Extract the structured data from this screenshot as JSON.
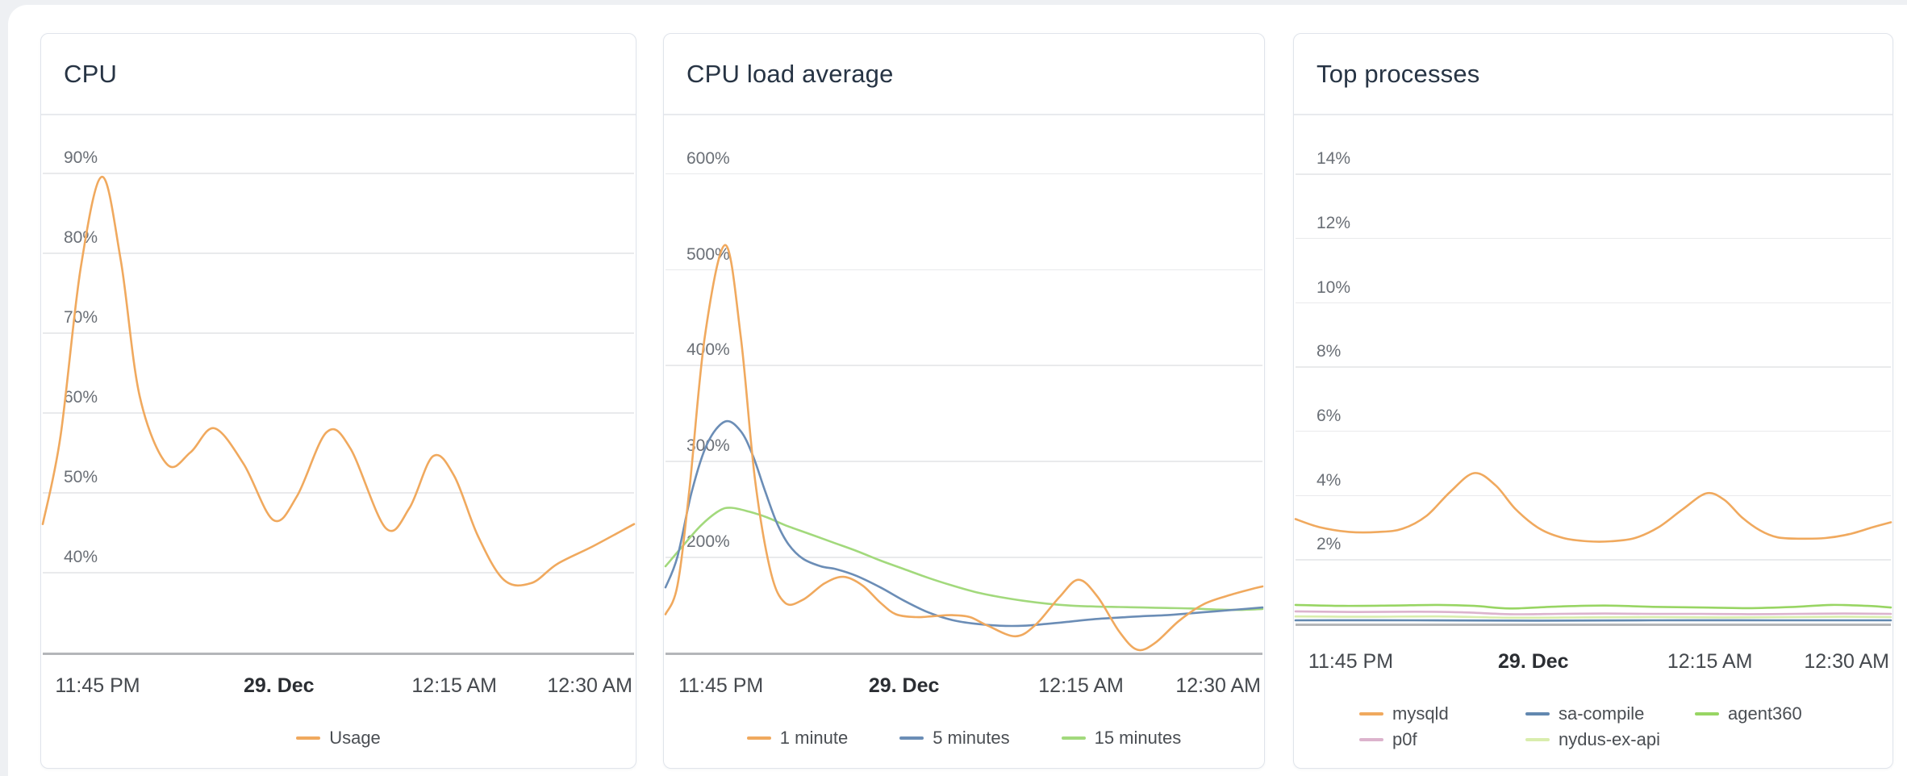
{
  "page": {
    "background": "#eef0f3",
    "surface": "#ffffff"
  },
  "styles": {
    "card_border": "#e0e4eb",
    "card_bg": "#ffffff",
    "divider": "#e8eaee",
    "gridline": "#e9eaec",
    "axis_line": "#b4b6b9",
    "title_color": "#273444",
    "ytick_color": "#6a6f76",
    "xtick_color": "#45494e",
    "xtick_bold_color": "#2b2e33",
    "legend_text_color": "#4a4e53",
    "orange": "#f0a95e",
    "blue": "#6b8db6",
    "green": "#a2d97c",
    "bright_green": "#98d563",
    "pink": "#dcb3cd",
    "pale_green": "#d9edad",
    "steel_blue": "#6288b0"
  },
  "x_ticks": [
    {
      "label": "11:45 PM",
      "pos": 0.095,
      "bold": false
    },
    {
      "label": "29. Dec",
      "pos": 0.4,
      "bold": true
    },
    {
      "label": "12:15 AM",
      "pos": 0.695,
      "bold": false
    },
    {
      "label": "12:30 AM",
      "pos": 1.0,
      "bold": false,
      "align": "right"
    }
  ],
  "chart_data": [
    {
      "type": "line",
      "title": "CPU",
      "xlabel": "",
      "ylabel": "",
      "x_time_span": "11:40 PM - 12:30 AM",
      "x_range_minutes": [
        0,
        50
      ],
      "ylim": [
        29.9,
        97.4
      ],
      "grid": true,
      "legend_position": "bottom",
      "yticks": [
        {
          "value": 90,
          "label": "90%"
        },
        {
          "value": 80,
          "label": "80%"
        },
        {
          "value": 70,
          "label": "70%"
        },
        {
          "value": 60,
          "label": "60%"
        },
        {
          "value": 50,
          "label": "50%"
        },
        {
          "value": 40,
          "label": "40%"
        }
      ],
      "series": [
        {
          "name": "Usage",
          "color": "#f0a95e",
          "points": [
            [
              0,
              46
            ],
            [
              1.5,
              57
            ],
            [
              3.2,
              78
            ],
            [
              5,
              89.5
            ],
            [
              6.6,
              79
            ],
            [
              8.2,
              62
            ],
            [
              10.5,
              53.5
            ],
            [
              12.5,
              55
            ],
            [
              14.5,
              58
            ],
            [
              17,
              53.5
            ],
            [
              19.5,
              46.5
            ],
            [
              21.5,
              49.5
            ],
            [
              24,
              57.5
            ],
            [
              26,
              55.5
            ],
            [
              29,
              45.5
            ],
            [
              31,
              48
            ],
            [
              33,
              54.5
            ],
            [
              34.8,
              52
            ],
            [
              36.8,
              44.5
            ],
            [
              39,
              39
            ],
            [
              41.3,
              38.6
            ],
            [
              43.5,
              41
            ],
            [
              46.5,
              43.2
            ],
            [
              50,
              46
            ]
          ]
        }
      ]
    },
    {
      "type": "line",
      "title": "CPU load average",
      "xlabel": "",
      "ylabel": "",
      "x_time_span": "11:40 PM - 12:30 AM",
      "x_range_minutes": [
        0,
        50
      ],
      "ylim": [
        100,
        662
      ],
      "grid": true,
      "legend_position": "bottom",
      "yticks": [
        {
          "value": 600,
          "label": "600%"
        },
        {
          "value": 500,
          "label": "500%"
        },
        {
          "value": 400,
          "label": "400%"
        },
        {
          "value": 300,
          "label": "300%"
        },
        {
          "value": 200,
          "label": "200%"
        }
      ],
      "series": [
        {
          "name": "1 minute",
          "color": "#f0a95e",
          "points": [
            [
              0,
              140
            ],
            [
              1,
              170
            ],
            [
              2,
              270
            ],
            [
              3.3,
              430
            ],
            [
              5,
              525
            ],
            [
              6.3,
              430
            ],
            [
              7.5,
              280
            ],
            [
              8.8,
              185
            ],
            [
              10,
              152
            ],
            [
              11.5,
              155
            ],
            [
              13.3,
              172
            ],
            [
              14.9,
              179
            ],
            [
              16.5,
              170
            ],
            [
              18,
              152
            ],
            [
              19.3,
              140
            ],
            [
              21,
              137
            ],
            [
              22.5,
              138
            ],
            [
              24,
              139
            ],
            [
              25.5,
              137
            ],
            [
              27,
              128
            ],
            [
              29.3,
              117
            ],
            [
              31,
              129
            ],
            [
              33,
              158
            ],
            [
              34.6,
              176
            ],
            [
              36.2,
              158
            ],
            [
              38,
              122
            ],
            [
              39.5,
              103
            ],
            [
              41,
              110
            ],
            [
              43,
              133
            ],
            [
              45,
              150
            ],
            [
              47,
              159
            ],
            [
              49,
              166
            ],
            [
              50,
              169
            ]
          ]
        },
        {
          "name": "5 minutes",
          "color": "#6b8db6",
          "points": [
            [
              0,
              168
            ],
            [
              1,
              200
            ],
            [
              2.2,
              268
            ],
            [
              3.5,
              318
            ],
            [
              5,
              341
            ],
            [
              6.3,
              331
            ],
            [
              7.3,
              306
            ],
            [
              8.3,
              270
            ],
            [
              9.3,
              236
            ],
            [
              10.3,
              213
            ],
            [
              11.5,
              198
            ],
            [
              13,
              190
            ],
            [
              14.3,
              187
            ],
            [
              16,
              180
            ],
            [
              18,
              168
            ],
            [
              20,
              154
            ],
            [
              22,
              142
            ],
            [
              24,
              134
            ],
            [
              26,
              130
            ],
            [
              28,
              128
            ],
            [
              30,
              128
            ],
            [
              32,
              130
            ],
            [
              34,
              132.5
            ],
            [
              36,
              135
            ],
            [
              38,
              136.5
            ],
            [
              40,
              138
            ],
            [
              42,
              139
            ],
            [
              44,
              141
            ],
            [
              46,
              143
            ],
            [
              48,
              145
            ],
            [
              50,
              147
            ]
          ]
        },
        {
          "name": "15 minutes",
          "color": "#a2d97c",
          "points": [
            [
              0,
              190
            ],
            [
              1.5,
              212
            ],
            [
              3,
              233
            ],
            [
              4.5,
              248
            ],
            [
              5.5,
              251
            ],
            [
              7,
              247
            ],
            [
              8.5,
              241
            ],
            [
              10,
              233
            ],
            [
              12,
              224
            ],
            [
              14,
              215
            ],
            [
              16,
              206
            ],
            [
              18,
              196
            ],
            [
              20,
              187
            ],
            [
              22,
              178
            ],
            [
              24,
              170
            ],
            [
              26,
              163
            ],
            [
              28,
              158
            ],
            [
              30,
              154
            ],
            [
              32,
              151
            ],
            [
              34,
              149
            ],
            [
              36,
              148
            ],
            [
              38,
              147.5
            ],
            [
              40,
              147
            ],
            [
              42,
              146.5
            ],
            [
              44,
              146
            ],
            [
              46,
              145
            ],
            [
              48,
              144.5
            ],
            [
              50,
              145.5
            ]
          ]
        }
      ]
    },
    {
      "type": "line",
      "title": "Top processes",
      "xlabel": "",
      "ylabel": "",
      "x_time_span": "11:40 PM - 12:30 AM",
      "x_range_minutes": [
        0,
        50
      ],
      "ylim": [
        0,
        15.86
      ],
      "grid": true,
      "legend_position": "bottom",
      "yticks": [
        {
          "value": 14,
          "label": "14%"
        },
        {
          "value": 12,
          "label": "12%"
        },
        {
          "value": 10,
          "label": "10%"
        },
        {
          "value": 8,
          "label": "8%"
        },
        {
          "value": 6,
          "label": "6%"
        },
        {
          "value": 4,
          "label": "4%"
        },
        {
          "value": 2,
          "label": "2%"
        }
      ],
      "series": [
        {
          "name": "mysqld",
          "color": "#f0a95e",
          "points": [
            [
              0,
              3.25
            ],
            [
              2,
              3.0
            ],
            [
              4.5,
              2.85
            ],
            [
              7,
              2.85
            ],
            [
              9,
              2.95
            ],
            [
              11,
              3.35
            ],
            [
              13,
              4.1
            ],
            [
              15,
              4.68
            ],
            [
              16.8,
              4.3
            ],
            [
              18.5,
              3.55
            ],
            [
              20.5,
              2.95
            ],
            [
              22.5,
              2.66
            ],
            [
              24.5,
              2.56
            ],
            [
              26.5,
              2.56
            ],
            [
              28.5,
              2.66
            ],
            [
              30.5,
              3.0
            ],
            [
              32.5,
              3.55
            ],
            [
              34.5,
              4.05
            ],
            [
              36,
              3.85
            ],
            [
              37.5,
              3.3
            ],
            [
              39,
              2.9
            ],
            [
              40.5,
              2.68
            ],
            [
              42.5,
              2.64
            ],
            [
              44.5,
              2.66
            ],
            [
              46.5,
              2.78
            ],
            [
              48.5,
              3.0
            ],
            [
              50,
              3.15
            ]
          ]
        },
        {
          "name": "sa-compile",
          "color": "#6288b0",
          "points": [
            [
              0,
              0.1
            ],
            [
              10,
              0.1
            ],
            [
              20,
              0.09
            ],
            [
              30,
              0.1
            ],
            [
              40,
              0.1
            ],
            [
              50,
              0.1
            ]
          ]
        },
        {
          "name": "agent360",
          "color": "#98d563",
          "points": [
            [
              0,
              0.58
            ],
            [
              4,
              0.55
            ],
            [
              8,
              0.56
            ],
            [
              12,
              0.58
            ],
            [
              15,
              0.55
            ],
            [
              18,
              0.47
            ],
            [
              22,
              0.53
            ],
            [
              26,
              0.56
            ],
            [
              30,
              0.52
            ],
            [
              34,
              0.5
            ],
            [
              38,
              0.48
            ],
            [
              42,
              0.52
            ],
            [
              45,
              0.58
            ],
            [
              48,
              0.55
            ],
            [
              50,
              0.5
            ]
          ]
        },
        {
          "name": "p0f",
          "color": "#dcb3cd",
          "points": [
            [
              0,
              0.38
            ],
            [
              5,
              0.36
            ],
            [
              10,
              0.37
            ],
            [
              14,
              0.35
            ],
            [
              18,
              0.29
            ],
            [
              22,
              0.3
            ],
            [
              26,
              0.31
            ],
            [
              30,
              0.3
            ],
            [
              34,
              0.3
            ],
            [
              38,
              0.29
            ],
            [
              42,
              0.3
            ],
            [
              46,
              0.31
            ],
            [
              50,
              0.3
            ]
          ]
        },
        {
          "name": "nydus-ex-api",
          "color": "#d9edad",
          "points": [
            [
              0,
              0.22
            ],
            [
              6,
              0.21
            ],
            [
              12,
              0.22
            ],
            [
              18,
              0.18
            ],
            [
              24,
              0.19
            ],
            [
              30,
              0.2
            ],
            [
              36,
              0.19
            ],
            [
              42,
              0.2
            ],
            [
              46,
              0.21
            ],
            [
              50,
              0.2
            ]
          ]
        }
      ],
      "legend_rows": [
        [
          "mysqld",
          "sa-compile",
          "agent360"
        ],
        [
          "p0f",
          "nydus-ex-api"
        ]
      ]
    }
  ]
}
